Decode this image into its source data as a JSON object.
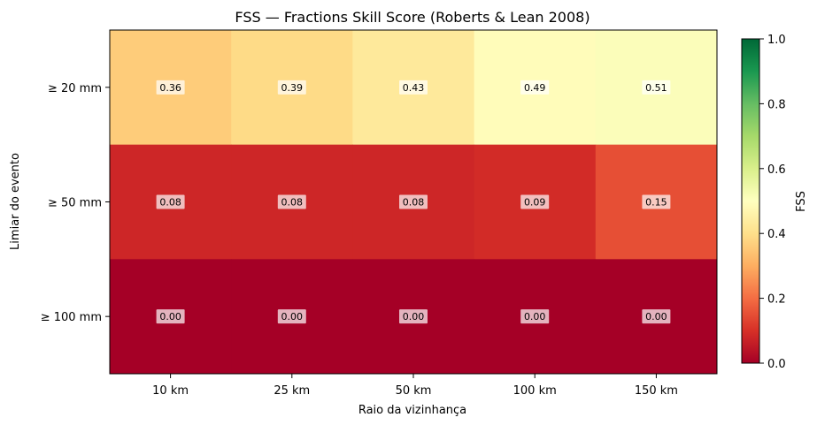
{
  "chart_data": {
    "type": "heatmap",
    "title": "FSS — Fractions Skill Score (Roberts & Lean 2008)",
    "xlabel": "Raio da vizinhança",
    "ylabel": "Limiar do evento",
    "x_categories": [
      "10 km",
      "25 km",
      "50 km",
      "100 km",
      "150 km"
    ],
    "y_categories": [
      "≥ 20 mm",
      "≥ 50 mm",
      "≥ 100 mm"
    ],
    "values": [
      [
        0.36,
        0.39,
        0.43,
        0.49,
        0.51
      ],
      [
        0.08,
        0.08,
        0.08,
        0.09,
        0.15
      ],
      [
        0.0,
        0.0,
        0.0,
        0.0,
        0.0
      ]
    ],
    "value_labels": [
      [
        "0.36",
        "0.39",
        "0.43",
        "0.49",
        "0.51"
      ],
      [
        "0.08",
        "0.08",
        "0.08",
        "0.09",
        "0.15"
      ],
      [
        "0.00",
        "0.00",
        "0.00",
        "0.00",
        "0.00"
      ]
    ],
    "colormap": "RdYlGn",
    "colorbar": {
      "label": "FSS",
      "range": [
        0,
        1
      ],
      "ticks": [
        0.0,
        0.2,
        0.4,
        0.6,
        0.8,
        1.0
      ],
      "tick_labels": [
        "0.0",
        "0.2",
        "0.4",
        "0.6",
        "0.8",
        "1.0"
      ]
    }
  }
}
